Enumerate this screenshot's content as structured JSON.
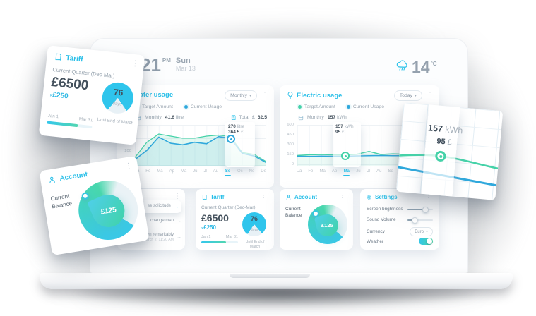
{
  "clock": {
    "time": "21",
    "meridiem": "PM",
    "day": "Sun",
    "date": "Mar 13"
  },
  "weather": {
    "temperature": "14",
    "unit": "°C"
  },
  "water_panel": {
    "title": "Water usage",
    "period": "Monthly",
    "caret": "▾",
    "legend": {
      "target": "Target Amount",
      "current": "Current Usage"
    },
    "monthly_label": "Monthly",
    "monthly_value": "41.6",
    "monthly_unit": "litre",
    "total_label": "Total",
    "total_currency": "£",
    "total_value": "62.5",
    "tooltip": {
      "value": "270",
      "unit": "litre",
      "cost": "364.5",
      "currency": "£"
    },
    "y_ticks": [
      "400",
      "300",
      "200",
      "100"
    ],
    "months": [
      {
        "label": "Ja"
      },
      {
        "label": "Fe"
      },
      {
        "label": "Ma"
      },
      {
        "label": "Ap"
      },
      {
        "label": "Ma"
      },
      {
        "label": "Ju"
      },
      {
        "label": "Jl"
      },
      {
        "label": "Au"
      },
      {
        "label": "Se",
        "active": true
      },
      {
        "label": "Oc"
      },
      {
        "label": "No"
      },
      {
        "label": "De"
      }
    ]
  },
  "electric_panel": {
    "title": "Electric usage",
    "period": "Today",
    "caret": "▾",
    "legend": {
      "target": "Target Amount",
      "current": "Current Usage"
    },
    "monthly_label": "Monthly",
    "monthly_value": "157",
    "monthly_unit": "kWh",
    "tooltip": {
      "value": "157",
      "unit": "kWh",
      "cost": "95",
      "currency": "£"
    },
    "y_ticks": [
      "600",
      "450",
      "300",
      "150",
      "0"
    ],
    "months": [
      {
        "label": "Ja"
      },
      {
        "label": "Fe"
      },
      {
        "label": "Ma"
      },
      {
        "label": "Ap"
      },
      {
        "label": "Ma",
        "active": true
      },
      {
        "label": "Ju"
      },
      {
        "label": "Jl"
      },
      {
        "label": "Au"
      },
      {
        "label": "Se"
      },
      {
        "label": "Oc"
      },
      {
        "label": "No"
      },
      {
        "label": "De"
      }
    ]
  },
  "events_card": {
    "items": [
      {
        "text": "se solicitude",
        "time": "",
        "arrow": "→"
      },
      {
        "text": "change man",
        "time": "",
        "arrow": "→"
      },
      {
        "text": "Indulgence ten remarkably",
        "time": "March 2, 11:20 AM",
        "arrow": "→"
      }
    ]
  },
  "tariff_card": {
    "title": "Tariff",
    "subtitle": "Current Quarter (Dec-Mar)",
    "amount": "£6500",
    "delta_arrow": "›",
    "delta": "£250",
    "days_value": "76",
    "days_label": "days",
    "range_start": "Jan 1",
    "range_end": "Mar 31",
    "footnote": "Until End of March"
  },
  "account_card": {
    "title": "Account",
    "balance_label": "Current Balance",
    "balance": "£125"
  },
  "settings_card": {
    "title": "Settings",
    "brightness_label": "Screen brightness",
    "volume_label": "Sound Volume",
    "currency_label": "Currency",
    "currency_value": "Euro",
    "currency_caret": "▾",
    "weather_label": "Weather",
    "weather_on": true
  },
  "chart_data": [
    {
      "type": "line",
      "title": "Water usage",
      "period": "Monthly",
      "x": [
        "Ja",
        "Fe",
        "Ma",
        "Ap",
        "Ma",
        "Ju",
        "Jl",
        "Au",
        "Se",
        "Oc",
        "No",
        "De"
      ],
      "ylim": [
        0,
        400
      ],
      "y_ticks": [
        400,
        300,
        200,
        100
      ],
      "series": [
        {
          "name": "Target Amount",
          "color": "#45d2a8",
          "values": [
            80,
            230,
            310,
            290,
            270,
            270,
            290,
            300,
            285,
            130,
            110,
            40
          ]
        },
        {
          "name": "Current Usage",
          "color": "#2fa8dc",
          "values": [
            60,
            150,
            280,
            220,
            205,
            230,
            215,
            285,
            270,
            120,
            95,
            30
          ]
        }
      ],
      "highlight": {
        "month": "Se",
        "value": "270 litre",
        "cost": "364.5 £"
      },
      "legend_position": "top-left",
      "grid": true
    },
    {
      "type": "line",
      "title": "Electric usage",
      "period": "Today",
      "x": [
        "Ja",
        "Fe",
        "Ma",
        "Ap",
        "Ma",
        "Ju",
        "Jl",
        "Au",
        "Se",
        "Oc",
        "No",
        "De"
      ],
      "ylim": [
        0,
        600
      ],
      "y_ticks": [
        600,
        450,
        300,
        150,
        0
      ],
      "series": [
        {
          "name": "Target Amount",
          "color": "#45d2a8",
          "values": [
            150,
            160,
            165,
            160,
            157,
            170,
            210,
            165,
            175,
            170,
            150,
            145
          ]
        },
        {
          "name": "Current Usage",
          "color": "#2fa8dc",
          "values": [
            140,
            138,
            142,
            140,
            140,
            145,
            148,
            150,
            148,
            147,
            143,
            140
          ]
        }
      ],
      "highlight": {
        "month": "Ma",
        "value": "157 kWh",
        "cost": "95 £"
      },
      "legend_position": "top-left",
      "grid": true
    }
  ],
  "colors": {
    "accent": "#29bfe8",
    "green": "#45d2a8",
    "blue": "#2fa8dc",
    "text_dark": "#43505c",
    "text_gray": "#93a0ac"
  }
}
